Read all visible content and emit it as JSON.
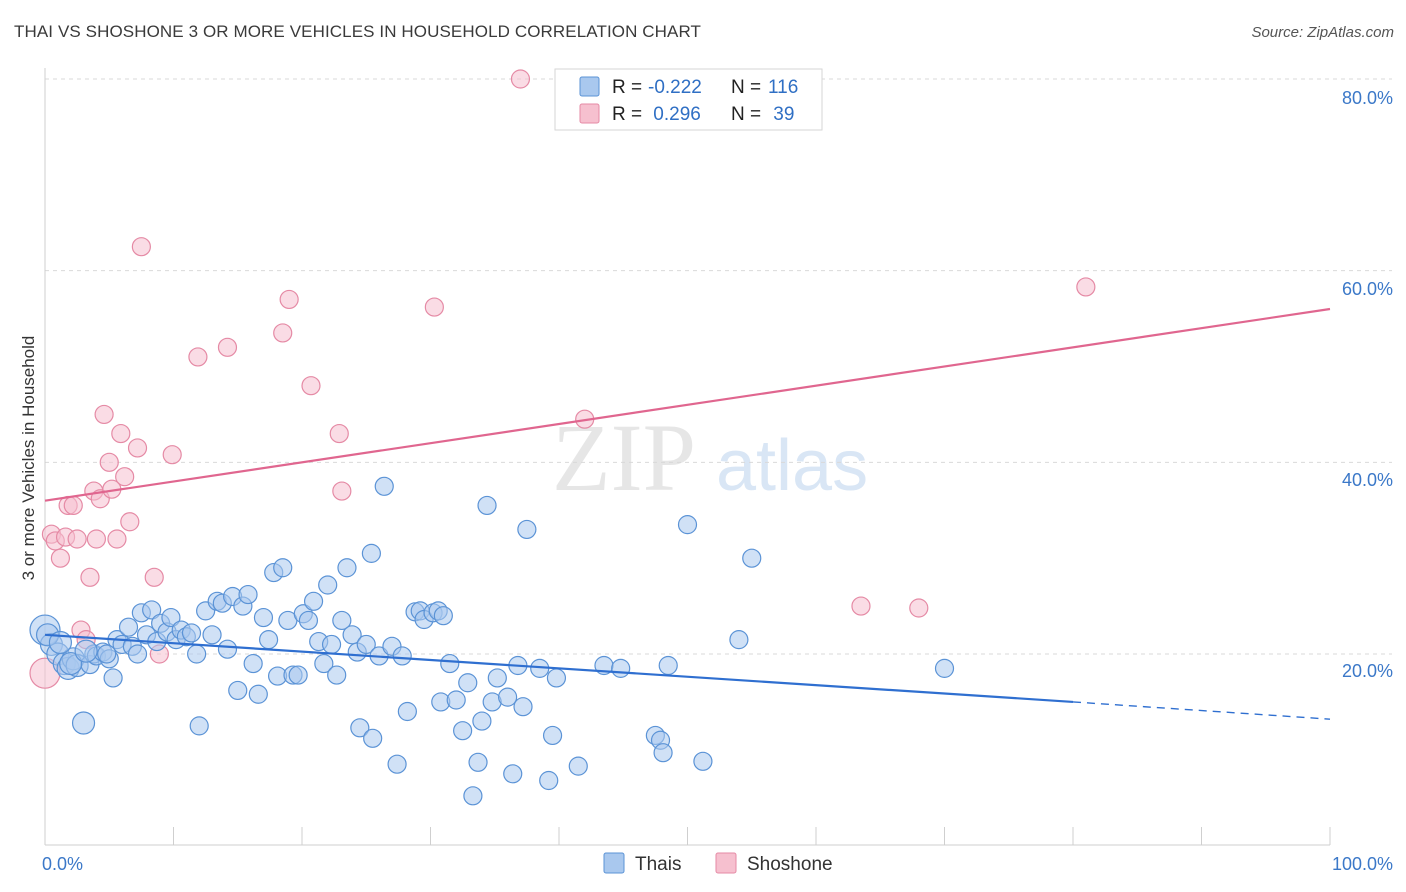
{
  "title": "THAI VS SHOSHONE 3 OR MORE VEHICLES IN HOUSEHOLD CORRELATION CHART",
  "source": "Source: ZipAtlas.com",
  "watermark": {
    "zip": "ZIP",
    "atlas": "atlas"
  },
  "colors": {
    "thai_fill": "#a9c8ee",
    "thai_stroke": "#5b93d6",
    "thai_line": "#2f6fd0",
    "shoshone_fill": "#f6c0cf",
    "shoshone_stroke": "#e58aa5",
    "shoshone_line": "#e0668f",
    "grid": "#d9d9d9",
    "tick_text": "#3b78c8"
  },
  "legend": {
    "rows": [
      {
        "r_label": "R =",
        "r_value": "-0.222",
        "n_label": "N =",
        "n_value": "116"
      },
      {
        "r_label": "R =",
        "r_value": " 0.296",
        "n_label": "N =",
        "n_value": " 39"
      }
    ]
  },
  "chart_data": {
    "type": "scatter",
    "title": "THAI VS SHOSHONE 3 OR MORE VEHICLES IN HOUSEHOLD CORRELATION CHART",
    "xlabel": "",
    "ylabel": "3 or more Vehicles in Household",
    "xlim": [
      0,
      100
    ],
    "ylim": [
      0,
      85
    ],
    "x_tick_labels": [
      "0.0%",
      "100.0%"
    ],
    "y_ticks": [
      20,
      40,
      60,
      80
    ],
    "y_tick_labels": [
      "20.0%",
      "40.0%",
      "60.0%",
      "80.0%"
    ],
    "grid": true,
    "legend_placement": "top-center",
    "series": [
      {
        "name": "Thais",
        "r": -0.222,
        "n": 116,
        "trend": {
          "x0": 0,
          "y0": 22.0,
          "x1": 80,
          "y1": 15.0,
          "x_dash_end": 100,
          "y_dash_end": 13.2
        },
        "points": [
          [
            0,
            22.5
          ],
          [
            0.5,
            21.0
          ],
          [
            1.0,
            20.0
          ],
          [
            1.5,
            19.0
          ],
          [
            1.8,
            18.5
          ],
          [
            2.2,
            19.5
          ],
          [
            2.5,
            18.8
          ],
          [
            3.0,
            12.8
          ],
          [
            3.5,
            18.9
          ],
          [
            3.8,
            20.0
          ],
          [
            4.0,
            19.8
          ],
          [
            4.5,
            20.2
          ],
          [
            5.0,
            19.5
          ],
          [
            5.3,
            17.5
          ],
          [
            5.6,
            21.5
          ],
          [
            6.0,
            21.0
          ],
          [
            6.5,
            22.8
          ],
          [
            6.8,
            20.8
          ],
          [
            7.2,
            20.0
          ],
          [
            7.5,
            24.3
          ],
          [
            7.9,
            22.0
          ],
          [
            8.3,
            24.6
          ],
          [
            8.7,
            21.3
          ],
          [
            9.0,
            23.2
          ],
          [
            9.5,
            22.3
          ],
          [
            9.8,
            23.8
          ],
          [
            10.2,
            21.5
          ],
          [
            10.6,
            22.5
          ],
          [
            11.0,
            21.8
          ],
          [
            11.4,
            22.2
          ],
          [
            11.8,
            20.0
          ],
          [
            12.0,
            12.5
          ],
          [
            12.5,
            24.5
          ],
          [
            13.0,
            22.0
          ],
          [
            13.4,
            25.5
          ],
          [
            13.8,
            25.3
          ],
          [
            14.2,
            20.5
          ],
          [
            14.6,
            26.0
          ],
          [
            15.0,
            16.2
          ],
          [
            15.4,
            25.0
          ],
          [
            15.8,
            26.2
          ],
          [
            16.2,
            19.0
          ],
          [
            16.6,
            15.8
          ],
          [
            17.0,
            23.8
          ],
          [
            17.4,
            21.5
          ],
          [
            17.8,
            28.5
          ],
          [
            18.1,
            17.7
          ],
          [
            18.5,
            29.0
          ],
          [
            18.9,
            23.5
          ],
          [
            19.3,
            17.8
          ],
          [
            19.7,
            17.8
          ],
          [
            20.1,
            24.2
          ],
          [
            20.5,
            23.5
          ],
          [
            20.9,
            25.5
          ],
          [
            21.3,
            21.3
          ],
          [
            21.7,
            19.0
          ],
          [
            22.0,
            27.2
          ],
          [
            22.3,
            21.0
          ],
          [
            22.7,
            17.8
          ],
          [
            23.1,
            23.5
          ],
          [
            23.5,
            29.0
          ],
          [
            23.9,
            22.0
          ],
          [
            24.3,
            20.2
          ],
          [
            24.5,
            12.3
          ],
          [
            25.0,
            21.0
          ],
          [
            25.4,
            30.5
          ],
          [
            25.5,
            11.2
          ],
          [
            26.0,
            19.8
          ],
          [
            26.4,
            37.5
          ],
          [
            27.0,
            20.8
          ],
          [
            27.4,
            8.5
          ],
          [
            27.8,
            19.8
          ],
          [
            28.2,
            14.0
          ],
          [
            28.8,
            24.4
          ],
          [
            29.2,
            24.5
          ],
          [
            29.5,
            23.6
          ],
          [
            30.2,
            24.3
          ],
          [
            30.6,
            24.5
          ],
          [
            31.0,
            24.0
          ],
          [
            30.8,
            15.0
          ],
          [
            31.5,
            19.0
          ],
          [
            32.0,
            15.2
          ],
          [
            32.5,
            12.0
          ],
          [
            32.9,
            17.0
          ],
          [
            33.3,
            5.2
          ],
          [
            33.7,
            8.7
          ],
          [
            34.0,
            13.0
          ],
          [
            34.4,
            35.5
          ],
          [
            34.8,
            15.0
          ],
          [
            35.2,
            17.5
          ],
          [
            36.0,
            15.5
          ],
          [
            36.4,
            7.5
          ],
          [
            36.8,
            18.8
          ],
          [
            37.2,
            14.5
          ],
          [
            37.5,
            33.0
          ],
          [
            38.5,
            18.5
          ],
          [
            39.2,
            6.8
          ],
          [
            39.5,
            11.5
          ],
          [
            39.8,
            17.5
          ],
          [
            41.5,
            8.3
          ],
          [
            43.5,
            18.8
          ],
          [
            44.8,
            18.5
          ],
          [
            47.5,
            11.5
          ],
          [
            47.9,
            11.0
          ],
          [
            48.1,
            9.7
          ],
          [
            48.5,
            18.8
          ],
          [
            50.0,
            33.5
          ],
          [
            51.2,
            8.8
          ],
          [
            54.0,
            21.5
          ],
          [
            55.0,
            30.0
          ],
          [
            70.0,
            18.5
          ],
          [
            0.2,
            22.0
          ],
          [
            1.2,
            21.2
          ],
          [
            2.0,
            19.0
          ],
          [
            4.8,
            20.0
          ],
          [
            3.2,
            20.3
          ]
        ]
      },
      {
        "name": "Shoshone",
        "r": 0.296,
        "n": 39,
        "trend": {
          "x0": 0,
          "y0": 36.0,
          "x1": 100,
          "y1": 56.0
        },
        "points": [
          [
            0,
            18.0
          ],
          [
            0.5,
            32.5
          ],
          [
            0.8,
            31.8
          ],
          [
            1.2,
            30.0
          ],
          [
            1.6,
            32.2
          ],
          [
            1.8,
            35.5
          ],
          [
            2.2,
            35.5
          ],
          [
            2.5,
            32.0
          ],
          [
            2.8,
            22.5
          ],
          [
            3.2,
            21.5
          ],
          [
            3.5,
            28.0
          ],
          [
            3.8,
            37.0
          ],
          [
            4.0,
            32.0
          ],
          [
            4.3,
            36.2
          ],
          [
            4.6,
            45.0
          ],
          [
            5.0,
            40.0
          ],
          [
            5.2,
            37.2
          ],
          [
            5.6,
            32.0
          ],
          [
            5.9,
            43.0
          ],
          [
            6.2,
            38.5
          ],
          [
            6.6,
            33.8
          ],
          [
            7.2,
            41.5
          ],
          [
            7.5,
            62.5
          ],
          [
            8.5,
            28.0
          ],
          [
            8.9,
            20.0
          ],
          [
            9.9,
            40.8
          ],
          [
            11.9,
            51.0
          ],
          [
            14.2,
            52.0
          ],
          [
            18.5,
            53.5
          ],
          [
            19.0,
            57.0
          ],
          [
            20.7,
            48.0
          ],
          [
            22.9,
            43.0
          ],
          [
            23.1,
            37.0
          ],
          [
            30.3,
            56.2
          ],
          [
            37.0,
            80.0
          ],
          [
            42.0,
            44.5
          ],
          [
            63.5,
            25.0
          ],
          [
            68.0,
            24.8
          ],
          [
            81.0,
            58.3
          ]
        ]
      }
    ]
  },
  "bottom_legend": {
    "thais": "Thais",
    "shoshone": "Shoshone"
  }
}
